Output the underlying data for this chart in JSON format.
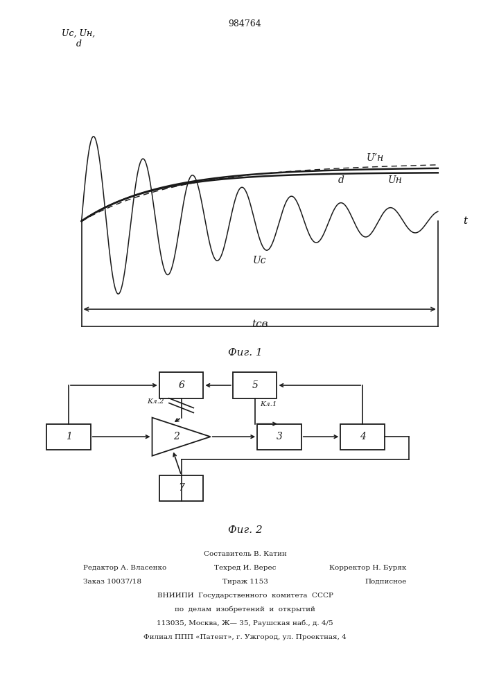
{
  "title": "984764",
  "fig1_caption": "Фиг. 1",
  "fig2_caption": "Фиг. 2",
  "ylabel": "Uс, Uн,\nd",
  "xlabel": "t",
  "tcb_label": "tсв",
  "Un_prime_label": "U’н",
  "d_label": "d",
  "Un_label": "Uн",
  "Uc_label": "Uс",
  "background_color": "#ffffff",
  "line_color": "#1a1a1a",
  "footer_col1_line1": "Редактор А. Власенко",
  "footer_col1_line2": "Заказ 10037/18",
  "footer_col2_line0": "Составитель В. Катин",
  "footer_col2_line1": "Техред И. Верес",
  "footer_col2_line2": "Тираж 1153",
  "footer_col3_line1": "Корректор Н. Буряк",
  "footer_col3_line2": "Подписное",
  "footer_vniip1": "ВНИИПИ  Государственного  комитета  СССР",
  "footer_vniip2": "по  делам  изобретений  и  открытий",
  "footer_addr1": "113035, Москва, Ж— 35, Раушская наб., д. 4/5",
  "footer_addr2": "Филиал ППП «Патент», г. Ужгород, ул. Проектная, 4"
}
